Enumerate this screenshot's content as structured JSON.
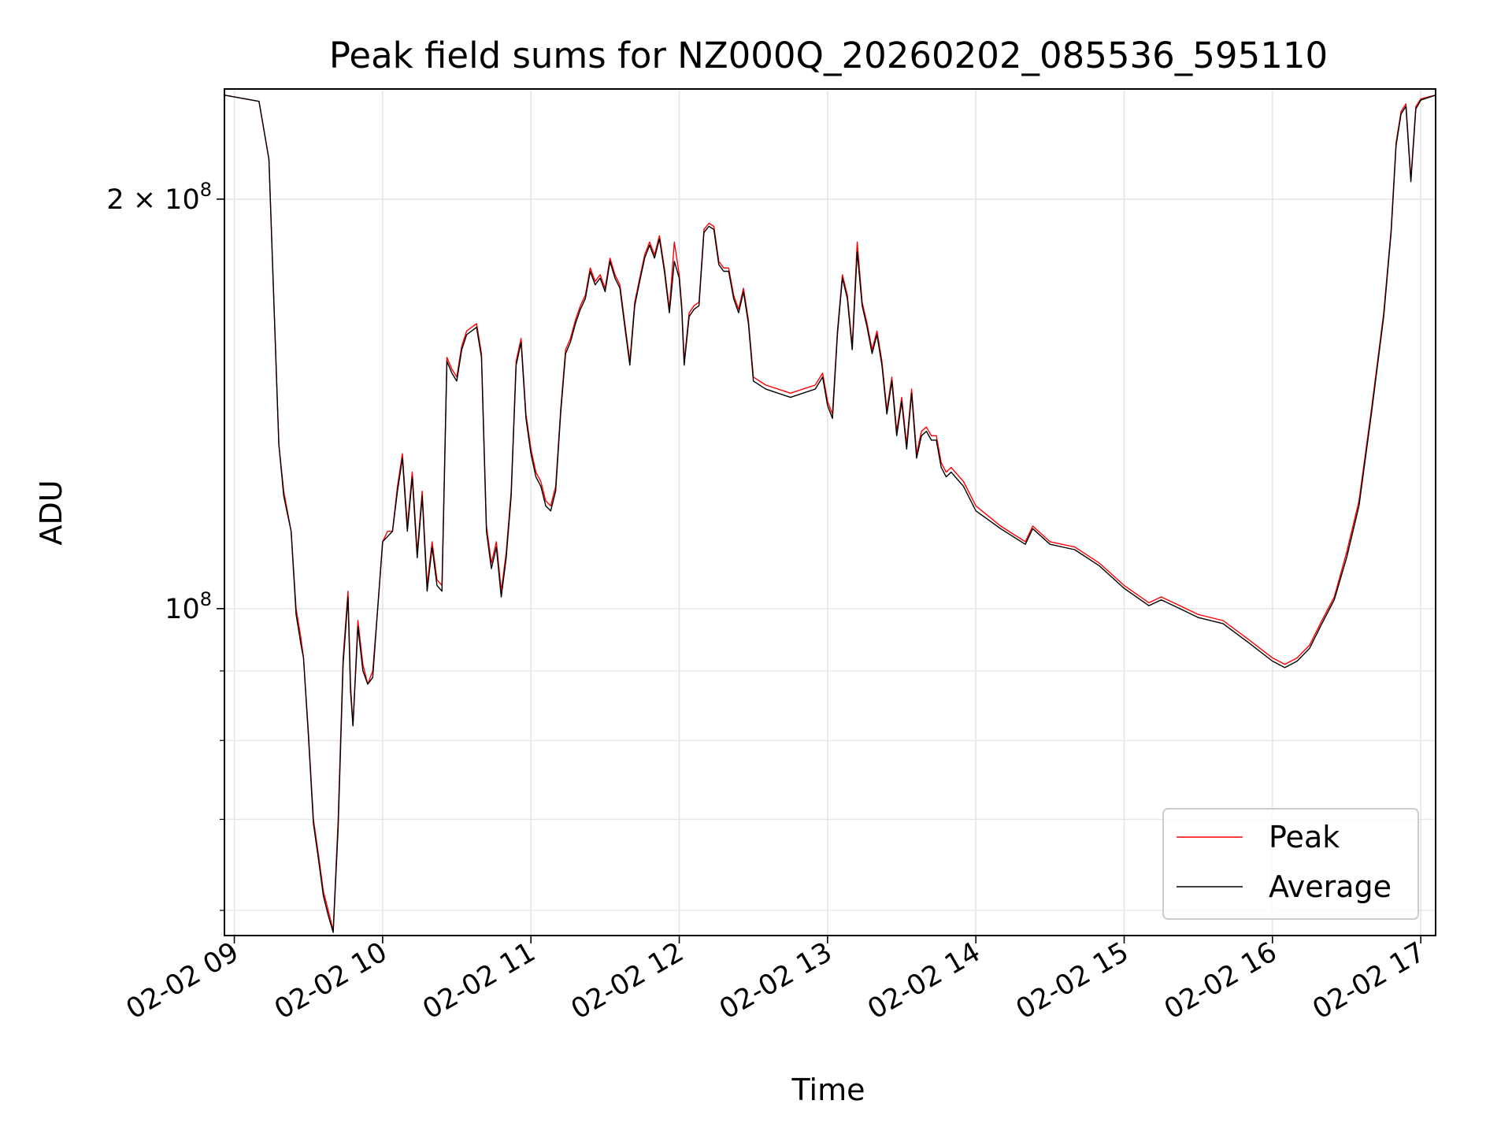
{
  "chart_data": {
    "type": "line",
    "title": "Peak field sums for NZ000Q_20260202_085536_595110",
    "xlabel": "Time",
    "ylabel": "ADU",
    "y_scale": "log",
    "xlim": [
      "2026-02-02 08:56",
      "2026-02-02 17:06"
    ],
    "ylim": [
      57500000,
      241000000
    ],
    "x_ticks": [
      "02-02 09",
      "02-02 10",
      "02-02 11",
      "02-02 12",
      "02-02 13",
      "02-02 14",
      "02-02 15",
      "02-02 16",
      "02-02 17"
    ],
    "y_ticks": [
      {
        "label_base": "2 × 10",
        "label_exp": "8",
        "value": 200000000
      },
      {
        "label_base": "10",
        "label_exp": "8",
        "value": 100000000
      }
    ],
    "grid": true,
    "legend_position": "lower right",
    "series": [
      {
        "name": "Peak",
        "color": "#ff0000",
        "x": [
          "08:56",
          "09:10",
          "09:14",
          "09:16",
          "09:18",
          "09:20",
          "09:23",
          "09:25",
          "09:27",
          "09:28",
          "09:30",
          "09:32",
          "09:34",
          "09:36",
          "09:38",
          "09:40",
          "09:42",
          "09:44",
          "09:46",
          "09:47",
          "09:48",
          "09:50",
          "09:52",
          "09:54",
          "09:56",
          "09:58",
          "10:00",
          "10:02",
          "10:04",
          "10:06",
          "10:08",
          "10:10",
          "10:12",
          "10:14",
          "10:16",
          "10:18",
          "10:20",
          "10:22",
          "10:24",
          "10:26",
          "10:28",
          "10:30",
          "10:32",
          "10:34",
          "10:36",
          "10:38",
          "10:40",
          "10:42",
          "10:44",
          "10:46",
          "10:48",
          "10:50",
          "10:52",
          "10:54",
          "10:56",
          "10:58",
          "11:00",
          "11:02",
          "11:04",
          "11:06",
          "11:08",
          "11:10",
          "11:12",
          "11:14",
          "11:16",
          "11:18",
          "11:20",
          "11:22",
          "11:24",
          "11:26",
          "11:28",
          "11:30",
          "11:32",
          "11:34",
          "11:36",
          "11:38",
          "11:40",
          "11:42",
          "11:44",
          "11:46",
          "11:48",
          "11:50",
          "11:52",
          "11:54",
          "11:56",
          "11:58",
          "12:00",
          "12:01",
          "12:02",
          "12:04",
          "12:06",
          "12:08",
          "12:10",
          "12:12",
          "12:14",
          "12:16",
          "12:18",
          "12:20",
          "12:22",
          "12:24",
          "12:26",
          "12:28",
          "12:30",
          "12:35",
          "12:40",
          "12:45",
          "12:50",
          "12:55",
          "12:58",
          "13:00",
          "13:02",
          "13:04",
          "13:06",
          "13:08",
          "13:10",
          "13:12",
          "13:14",
          "13:16",
          "13:18",
          "13:20",
          "13:22",
          "13:24",
          "13:26",
          "13:28",
          "13:30",
          "13:32",
          "13:34",
          "13:36",
          "13:38",
          "13:40",
          "13:42",
          "13:44",
          "13:46",
          "13:48",
          "13:50",
          "13:55",
          "14:00",
          "14:10",
          "14:20",
          "14:23",
          "14:30",
          "14:40",
          "14:50",
          "15:00",
          "15:10",
          "15:15",
          "15:20",
          "15:25",
          "15:30",
          "15:40",
          "15:50",
          "16:00",
          "16:05",
          "16:10",
          "16:15",
          "16:20",
          "16:25",
          "16:30",
          "16:35",
          "16:40",
          "16:45",
          "16:48",
          "16:50",
          "16:52",
          "16:54",
          "16:56",
          "16:58",
          "17:00",
          "17:06"
        ],
        "y": [
          238500000,
          236000000,
          214000000,
          168000000,
          132000000,
          122000000,
          114000000,
          100000000,
          95000000,
          92000000,
          81000000,
          70000000,
          66000000,
          62000000,
          60000000,
          58000000,
          70000000,
          92000000,
          103000000,
          88000000,
          82000000,
          98000000,
          91000000,
          88000000,
          90000000,
          100000000,
          112000000,
          114000000,
          114000000,
          123000000,
          130000000,
          115000000,
          126000000,
          110000000,
          122000000,
          104000000,
          112000000,
          105000000,
          104000000,
          153000000,
          150000000,
          148000000,
          156000000,
          160000000,
          161000000,
          162000000,
          154000000,
          115000000,
          108000000,
          112000000,
          103000000,
          110000000,
          122000000,
          152000000,
          158000000,
          139000000,
          131000000,
          126000000,
          124000000,
          120000000,
          119000000,
          123000000,
          140000000,
          155000000,
          158000000,
          163000000,
          167000000,
          170000000,
          178000000,
          174000000,
          176000000,
          172000000,
          181000000,
          176000000,
          173000000,
          162000000,
          152000000,
          168000000,
          175000000,
          182000000,
          186000000,
          182000000,
          188000000,
          178000000,
          166000000,
          186000000,
          176000000,
          167000000,
          152000000,
          165000000,
          167000000,
          168000000,
          190000000,
          192000000,
          191000000,
          180000000,
          178000000,
          178000000,
          170000000,
          166000000,
          172000000,
          163000000,
          148000000,
          146000000,
          145000000,
          144000000,
          145000000,
          146000000,
          149000000,
          142000000,
          139000000,
          160000000,
          176000000,
          170000000,
          156000000,
          186000000,
          168000000,
          162000000,
          155000000,
          160000000,
          152000000,
          140000000,
          148000000,
          135000000,
          143000000,
          132000000,
          145000000,
          130000000,
          135000000,
          136000000,
          134000000,
          134000000,
          128000000,
          126000000,
          127000000,
          124000000,
          119000000,
          115000000,
          112000000,
          115000000,
          112000000,
          111000000,
          108000000,
          104000000,
          101000000,
          102000000,
          101000000,
          100000000,
          99000000,
          98000000,
          95000000,
          92000000,
          91000000,
          92000000,
          94000000,
          98000000,
          102000000,
          110000000,
          120000000,
          140000000,
          165000000,
          190000000,
          220000000,
          232000000,
          235000000,
          207000000,
          234000000,
          237000000,
          238500000
        ]
      },
      {
        "name": "Average",
        "color": "#000000",
        "x": [
          "08:56",
          "09:10",
          "09:14",
          "09:16",
          "09:18",
          "09:20",
          "09:23",
          "09:25",
          "09:27",
          "09:28",
          "09:30",
          "09:32",
          "09:34",
          "09:36",
          "09:38",
          "09:40",
          "09:42",
          "09:44",
          "09:46",
          "09:47",
          "09:48",
          "09:50",
          "09:52",
          "09:54",
          "09:56",
          "09:58",
          "10:00",
          "10:02",
          "10:04",
          "10:06",
          "10:08",
          "10:10",
          "10:12",
          "10:14",
          "10:16",
          "10:18",
          "10:20",
          "10:22",
          "10:24",
          "10:26",
          "10:28",
          "10:30",
          "10:32",
          "10:34",
          "10:36",
          "10:38",
          "10:40",
          "10:42",
          "10:44",
          "10:46",
          "10:48",
          "10:50",
          "10:52",
          "10:54",
          "10:56",
          "10:58",
          "11:00",
          "11:02",
          "11:04",
          "11:06",
          "11:08",
          "11:10",
          "11:12",
          "11:14",
          "11:16",
          "11:18",
          "11:20",
          "11:22",
          "11:24",
          "11:26",
          "11:28",
          "11:30",
          "11:32",
          "11:34",
          "11:36",
          "11:38",
          "11:40",
          "11:42",
          "11:44",
          "11:46",
          "11:48",
          "11:50",
          "11:52",
          "11:54",
          "11:56",
          "11:58",
          "12:00",
          "12:01",
          "12:02",
          "12:04",
          "12:06",
          "12:08",
          "12:10",
          "12:12",
          "12:14",
          "12:16",
          "12:18",
          "12:20",
          "12:22",
          "12:24",
          "12:26",
          "12:28",
          "12:30",
          "12:35",
          "12:40",
          "12:45",
          "12:50",
          "12:55",
          "12:58",
          "13:00",
          "13:02",
          "13:04",
          "13:06",
          "13:08",
          "13:10",
          "13:12",
          "13:14",
          "13:16",
          "13:18",
          "13:20",
          "13:22",
          "13:24",
          "13:26",
          "13:28",
          "13:30",
          "13:32",
          "13:34",
          "13:36",
          "13:38",
          "13:40",
          "13:42",
          "13:44",
          "13:46",
          "13:48",
          "13:50",
          "13:55",
          "14:00",
          "14:10",
          "14:20",
          "14:23",
          "14:30",
          "14:40",
          "14:50",
          "15:00",
          "15:10",
          "15:15",
          "15:20",
          "15:25",
          "15:30",
          "15:40",
          "15:50",
          "16:00",
          "16:05",
          "16:10",
          "16:15",
          "16:20",
          "16:25",
          "16:30",
          "16:35",
          "16:40",
          "16:45",
          "16:48",
          "16:50",
          "16:52",
          "16:54",
          "16:56",
          "16:58",
          "17:00",
          "17:06"
        ],
        "y": [
          238500000,
          236000000,
          214000000,
          168000000,
          132000000,
          121000000,
          114000000,
          99000000,
          94000000,
          92000000,
          80500000,
          69500000,
          65500000,
          61500000,
          59500000,
          57800000,
          69000000,
          91000000,
          102000000,
          87000000,
          82000000,
          97000000,
          90000000,
          88000000,
          89000000,
          100000000,
          112000000,
          113000000,
          114000000,
          122000000,
          129000000,
          114000000,
          125000000,
          109000000,
          121000000,
          103000000,
          111000000,
          104000000,
          103000000,
          152000000,
          149000000,
          147000000,
          155000000,
          159000000,
          160000000,
          161000000,
          153000000,
          114000000,
          107000000,
          111000000,
          102000000,
          109000000,
          121000000,
          151000000,
          157000000,
          138000000,
          130000000,
          125000000,
          123000000,
          119000000,
          118000000,
          122000000,
          139000000,
          154000000,
          157000000,
          162000000,
          166000000,
          169000000,
          177000000,
          173000000,
          175000000,
          171000000,
          180000000,
          175000000,
          172000000,
          161000000,
          151000000,
          167000000,
          174000000,
          181000000,
          185000000,
          181000000,
          187000000,
          177000000,
          165000000,
          180000000,
          175000000,
          166000000,
          151000000,
          164000000,
          166000000,
          167000000,
          189000000,
          191000000,
          190000000,
          179000000,
          177000000,
          177000000,
          169000000,
          165000000,
          171000000,
          162000000,
          147000000,
          145000000,
          144000000,
          143000000,
          144000000,
          145000000,
          148000000,
          141000000,
          138000000,
          159000000,
          175000000,
          169000000,
          155000000,
          183000000,
          167000000,
          161000000,
          154000000,
          159000000,
          151000000,
          139000000,
          147000000,
          134000000,
          142000000,
          131000000,
          144000000,
          129000000,
          134000000,
          135000000,
          133000000,
          133000000,
          127000000,
          125000000,
          126000000,
          123000000,
          118000000,
          114500000,
          111500000,
          114500000,
          111500000,
          110500000,
          107500000,
          103500000,
          100500000,
          101500000,
          100500000,
          99500000,
          98500000,
          97500000,
          94500000,
          91500000,
          90500000,
          91500000,
          93500000,
          97500000,
          101500000,
          109000000,
          119000000,
          139000000,
          164000000,
          189000000,
          219000000,
          231000000,
          234000000,
          206000000,
          233000000,
          236500000,
          238500000
        ]
      }
    ]
  }
}
